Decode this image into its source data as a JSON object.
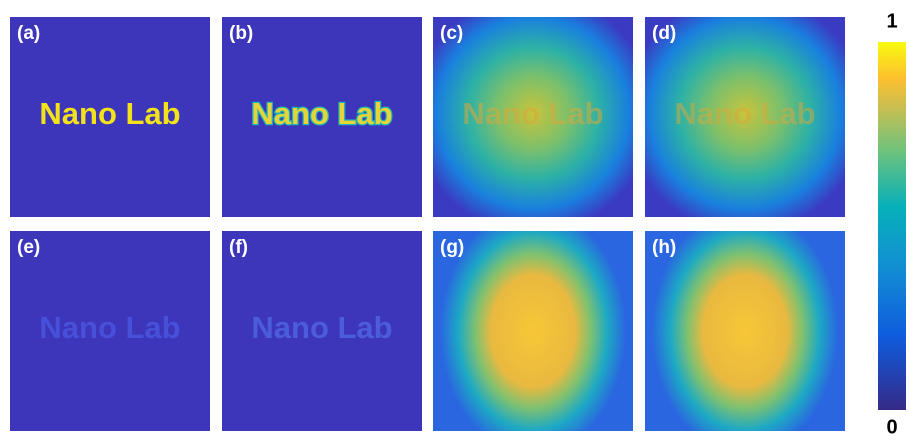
{
  "panels": [
    {
      "label": "(a)",
      "text": "Nano Lab"
    },
    {
      "label": "(b)",
      "text": "Nano Lab"
    },
    {
      "label": "(c)",
      "text": "Nano Lab"
    },
    {
      "label": "(d)",
      "text": "Nano Lab"
    },
    {
      "label": "(e)",
      "text": "Nano Lab"
    },
    {
      "label": "(f)",
      "text": "Nano Lab"
    },
    {
      "label": "(g)"
    },
    {
      "label": "(h)"
    }
  ],
  "colorbar": {
    "max": 1,
    "min": 0
  }
}
